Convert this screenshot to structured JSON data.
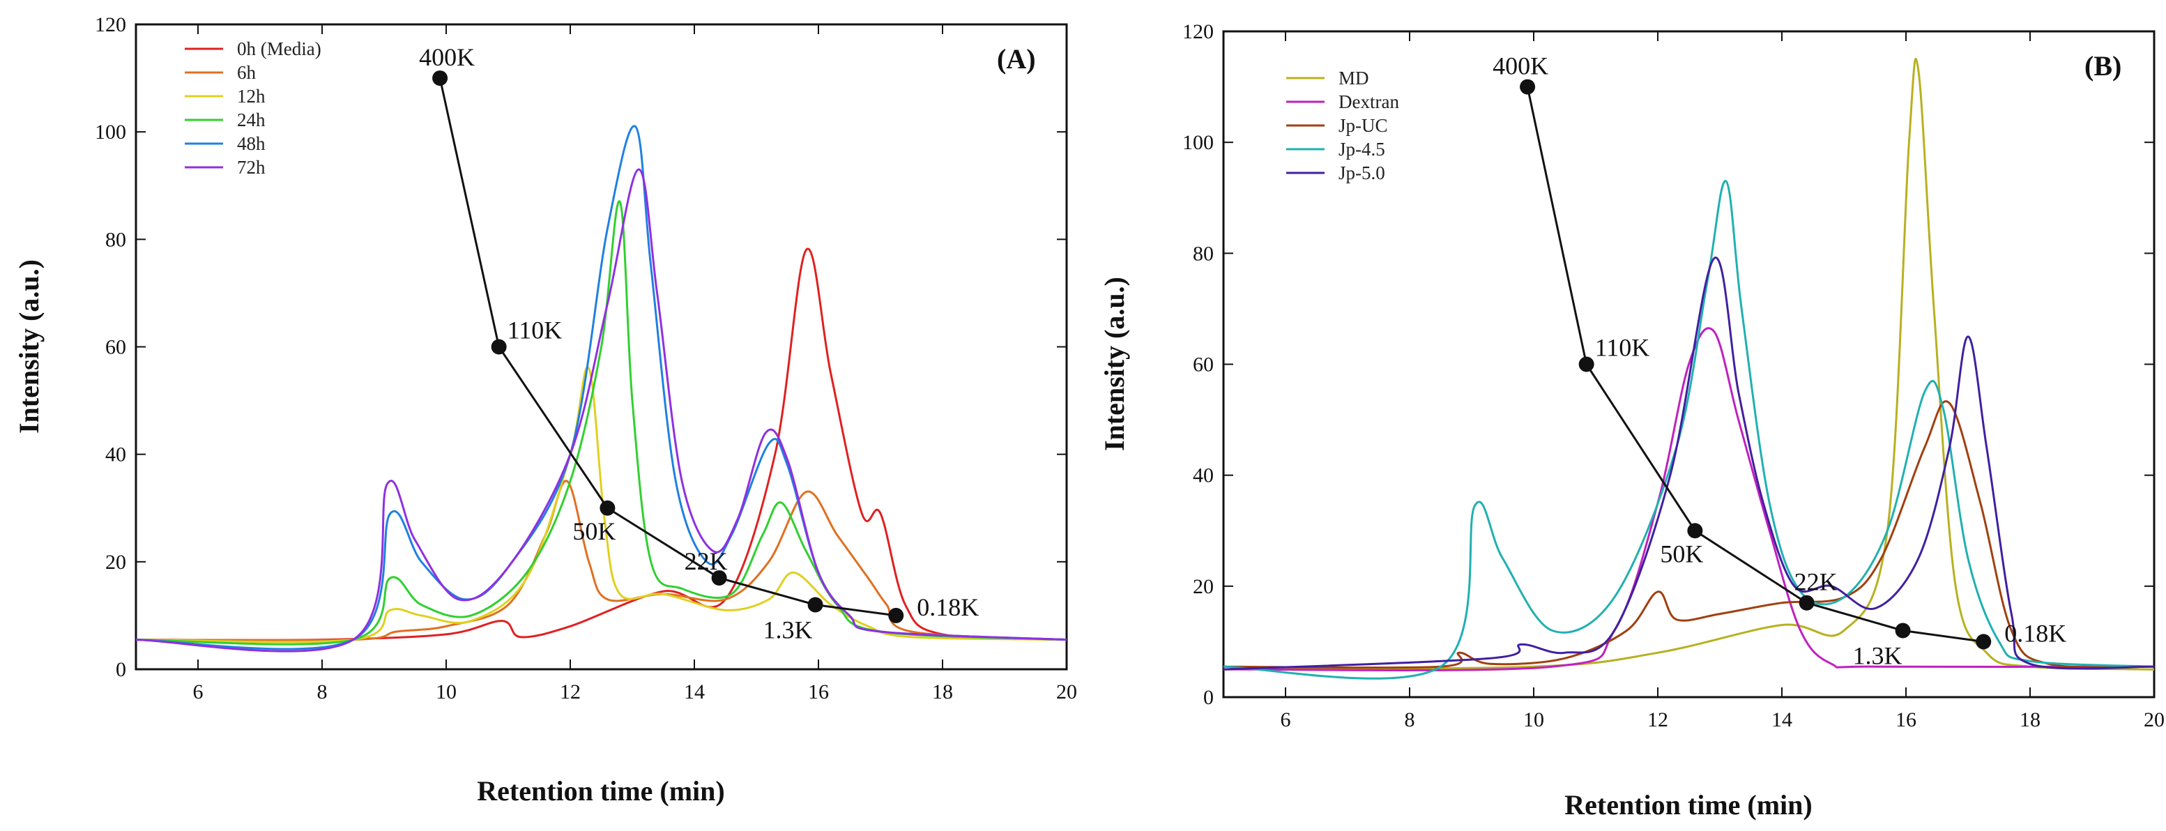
{
  "chart_data": [
    {
      "type": "line",
      "panel_label": "(A)",
      "xlabel": "Retention time (min)",
      "ylabel": "Intensity (a.u.)",
      "xlim": [
        5,
        20
      ],
      "ylim": [
        0,
        120
      ],
      "xticks": [
        6,
        8,
        10,
        12,
        14,
        16,
        18,
        20
      ],
      "yticks": [
        0,
        20,
        40,
        60,
        80,
        100,
        120
      ],
      "legend_position": "top-left",
      "series": [
        {
          "name": "0h (Media)",
          "color": "#e02020",
          "points": [
            [
              5,
              5.5
            ],
            [
              8,
              5.5
            ],
            [
              10,
              6.5
            ],
            [
              10.9,
              9
            ],
            [
              11.2,
              6
            ],
            [
              12,
              8
            ],
            [
              13.5,
              14.5
            ],
            [
              14.5,
              13
            ],
            [
              15.3,
              40
            ],
            [
              15.8,
              78
            ],
            [
              16.2,
              55
            ],
            [
              16.7,
              29
            ],
            [
              17,
              29
            ],
            [
              17.4,
              12
            ],
            [
              18,
              6.5
            ],
            [
              20,
              5.5
            ]
          ]
        },
        {
          "name": "6h",
          "color": "#e07020",
          "points": [
            [
              5,
              5.5
            ],
            [
              8.5,
              5.5
            ],
            [
              9.2,
              7
            ],
            [
              10,
              8
            ],
            [
              11,
              12
            ],
            [
              11.6,
              25
            ],
            [
              11.95,
              35
            ],
            [
              12.3,
              20
            ],
            [
              12.6,
              13
            ],
            [
              13.5,
              14
            ],
            [
              14.5,
              13
            ],
            [
              15.2,
              20
            ],
            [
              15.8,
              33
            ],
            [
              16.3,
              25
            ],
            [
              16.8,
              17
            ],
            [
              17.1,
              12
            ],
            [
              17.5,
              7
            ],
            [
              20,
              5.5
            ]
          ]
        },
        {
          "name": "12h",
          "color": "#e0d020",
          "points": [
            [
              5,
              5.5
            ],
            [
              8.5,
              5.5
            ],
            [
              9.1,
              11
            ],
            [
              9.6,
              10
            ],
            [
              10.4,
              9
            ],
            [
              11.3,
              17
            ],
            [
              12,
              40
            ],
            [
              12.3,
              56
            ],
            [
              12.55,
              28
            ],
            [
              12.8,
              14
            ],
            [
              13.5,
              14
            ],
            [
              14.5,
              11
            ],
            [
              15.2,
              13
            ],
            [
              15.6,
              18
            ],
            [
              16.2,
              12
            ],
            [
              16.8,
              8
            ],
            [
              17.5,
              6
            ],
            [
              20,
              5.5
            ]
          ]
        },
        {
          "name": "24h",
          "color": "#30d030",
          "points": [
            [
              5,
              5.5
            ],
            [
              8.5,
              5.5
            ],
            [
              9.1,
              17
            ],
            [
              9.6,
              12
            ],
            [
              10.4,
              10
            ],
            [
              11.3,
              18
            ],
            [
              12,
              35
            ],
            [
              12.5,
              60
            ],
            [
              12.8,
              87
            ],
            [
              13,
              50
            ],
            [
              13.3,
              20
            ],
            [
              13.8,
              15
            ],
            [
              14.6,
              14
            ],
            [
              15.1,
              25
            ],
            [
              15.4,
              31
            ],
            [
              15.8,
              22
            ],
            [
              16.3,
              12
            ],
            [
              17,
              7
            ],
            [
              20,
              5.5
            ]
          ]
        },
        {
          "name": "48h",
          "color": "#2080e0",
          "points": [
            [
              5,
              5.5
            ],
            [
              8.5,
              5.5
            ],
            [
              9.1,
              29
            ],
            [
              9.6,
              20
            ],
            [
              10.3,
              13
            ],
            [
              11,
              19
            ],
            [
              12,
              40
            ],
            [
              12.6,
              82
            ],
            [
              13.05,
              101
            ],
            [
              13.3,
              75
            ],
            [
              13.7,
              35
            ],
            [
              14.2,
              20
            ],
            [
              14.6,
              25
            ],
            [
              15.2,
              42
            ],
            [
              15.5,
              38
            ],
            [
              16,
              18
            ],
            [
              16.5,
              10
            ],
            [
              17,
              7
            ],
            [
              20,
              5.5
            ]
          ]
        },
        {
          "name": "72h",
          "color": "#9030e0",
          "points": [
            [
              5,
              5.5
            ],
            [
              8.5,
              5.5
            ],
            [
              9.05,
              34.5
            ],
            [
              9.5,
              24
            ],
            [
              10.2,
              13
            ],
            [
              11,
              19
            ],
            [
              12,
              40
            ],
            [
              12.6,
              68
            ],
            [
              13.1,
              93
            ],
            [
              13.4,
              70
            ],
            [
              13.8,
              35
            ],
            [
              14.3,
              22
            ],
            [
              14.7,
              28
            ],
            [
              15.15,
              44
            ],
            [
              15.5,
              39
            ],
            [
              16,
              18
            ],
            [
              16.5,
              10
            ],
            [
              17,
              7
            ],
            [
              20,
              5.5
            ]
          ]
        }
      ],
      "standards": {
        "color": "#111111",
        "points": [
          {
            "x": 9.9,
            "y": 110,
            "label": "400K"
          },
          {
            "x": 10.85,
            "y": 60,
            "label": "110K"
          },
          {
            "x": 12.6,
            "y": 30,
            "label": "50K"
          },
          {
            "x": 14.4,
            "y": 17,
            "label": "22K"
          },
          {
            "x": 15.95,
            "y": 12,
            "label": "1.3K"
          },
          {
            "x": 17.25,
            "y": 10,
            "label": "0.18K"
          }
        ]
      }
    },
    {
      "type": "line",
      "panel_label": "(B)",
      "xlabel": "Retention time (min)",
      "ylabel": "Intensity (a.u.)",
      "xlim": [
        5,
        20
      ],
      "ylim": [
        0,
        120
      ],
      "xticks": [
        6,
        8,
        10,
        12,
        14,
        16,
        18,
        20
      ],
      "yticks": [
        0,
        20,
        40,
        60,
        80,
        100,
        120
      ],
      "legend_position": "top-left",
      "series": [
        {
          "name": "MD",
          "color": "#b8b020",
          "points": [
            [
              5,
              5
            ],
            [
              10,
              5.5
            ],
            [
              12,
              8
            ],
            [
              14,
              13
            ],
            [
              15,
              12
            ],
            [
              15.7,
              30
            ],
            [
              16.05,
              100
            ],
            [
              16.2,
              113
            ],
            [
              16.45,
              70
            ],
            [
              16.8,
              20
            ],
            [
              17.3,
              8
            ],
            [
              18,
              5.5
            ],
            [
              20,
              5
            ]
          ]
        },
        {
          "name": "Dextran",
          "color": "#c020c0",
          "points": [
            [
              5,
              5
            ],
            [
              10.3,
              5.5
            ],
            [
              11.3,
              12
            ],
            [
              12,
              35
            ],
            [
              12.5,
              60
            ],
            [
              12.9,
              66
            ],
            [
              13.3,
              50
            ],
            [
              13.8,
              30
            ],
            [
              14.3,
              12
            ],
            [
              14.8,
              6
            ],
            [
              15.5,
              5.5
            ],
            [
              20,
              5.5
            ]
          ]
        },
        {
          "name": "Jp-UC",
          "color": "#a04010",
          "points": [
            [
              5,
              5.5
            ],
            [
              8.5,
              5.5
            ],
            [
              8.8,
              8
            ],
            [
              9.3,
              6
            ],
            [
              10.5,
              7
            ],
            [
              11.5,
              12
            ],
            [
              12,
              19
            ],
            [
              12.3,
              14
            ],
            [
              13,
              15
            ],
            [
              14,
              17
            ],
            [
              15,
              18
            ],
            [
              15.6,
              25
            ],
            [
              16.3,
              45
            ],
            [
              16.7,
              53
            ],
            [
              17.2,
              35
            ],
            [
              17.7,
              12
            ],
            [
              18.3,
              6
            ],
            [
              20,
              5.5
            ]
          ]
        },
        {
          "name": "Jp-4.5",
          "color": "#20b0b0",
          "points": [
            [
              5,
              5.5
            ],
            [
              8.5,
              5.5
            ],
            [
              9.05,
              34.5
            ],
            [
              9.5,
              25
            ],
            [
              10.3,
              12
            ],
            [
              11.3,
              18
            ],
            [
              12.3,
              45
            ],
            [
              12.8,
              75
            ],
            [
              13.1,
              93
            ],
            [
              13.35,
              70
            ],
            [
              13.8,
              35
            ],
            [
              14.3,
              19
            ],
            [
              15,
              18
            ],
            [
              15.7,
              30
            ],
            [
              16.3,
              55
            ],
            [
              16.6,
              52
            ],
            [
              17,
              25
            ],
            [
              17.5,
              10
            ],
            [
              18,
              6.5
            ],
            [
              20,
              5.5
            ]
          ]
        },
        {
          "name": "Jp-5.0",
          "color": "#4020a0",
          "points": [
            [
              5,
              5
            ],
            [
              9.3,
              7
            ],
            [
              9.8,
              9.5
            ],
            [
              10.5,
              8
            ],
            [
              11.3,
              12
            ],
            [
              12.2,
              40
            ],
            [
              12.9,
              79
            ],
            [
              13.3,
              55
            ],
            [
              13.7,
              35
            ],
            [
              14.2,
              20
            ],
            [
              14.8,
              20
            ],
            [
              15.5,
              16
            ],
            [
              16.2,
              25
            ],
            [
              16.7,
              45
            ],
            [
              17,
              65
            ],
            [
              17.3,
              45
            ],
            [
              17.7,
              15
            ],
            [
              18,
              6
            ],
            [
              20,
              5.5
            ]
          ]
        }
      ],
      "standards": {
        "color": "#111111",
        "points": [
          {
            "x": 9.9,
            "y": 110,
            "label": "400K"
          },
          {
            "x": 10.85,
            "y": 60,
            "label": "110K"
          },
          {
            "x": 12.6,
            "y": 30,
            "label": "50K"
          },
          {
            "x": 14.4,
            "y": 17,
            "label": "22K"
          },
          {
            "x": 15.95,
            "y": 12,
            "label": "1.3K"
          },
          {
            "x": 17.25,
            "y": 10,
            "label": "0.18K"
          }
        ]
      }
    }
  ]
}
